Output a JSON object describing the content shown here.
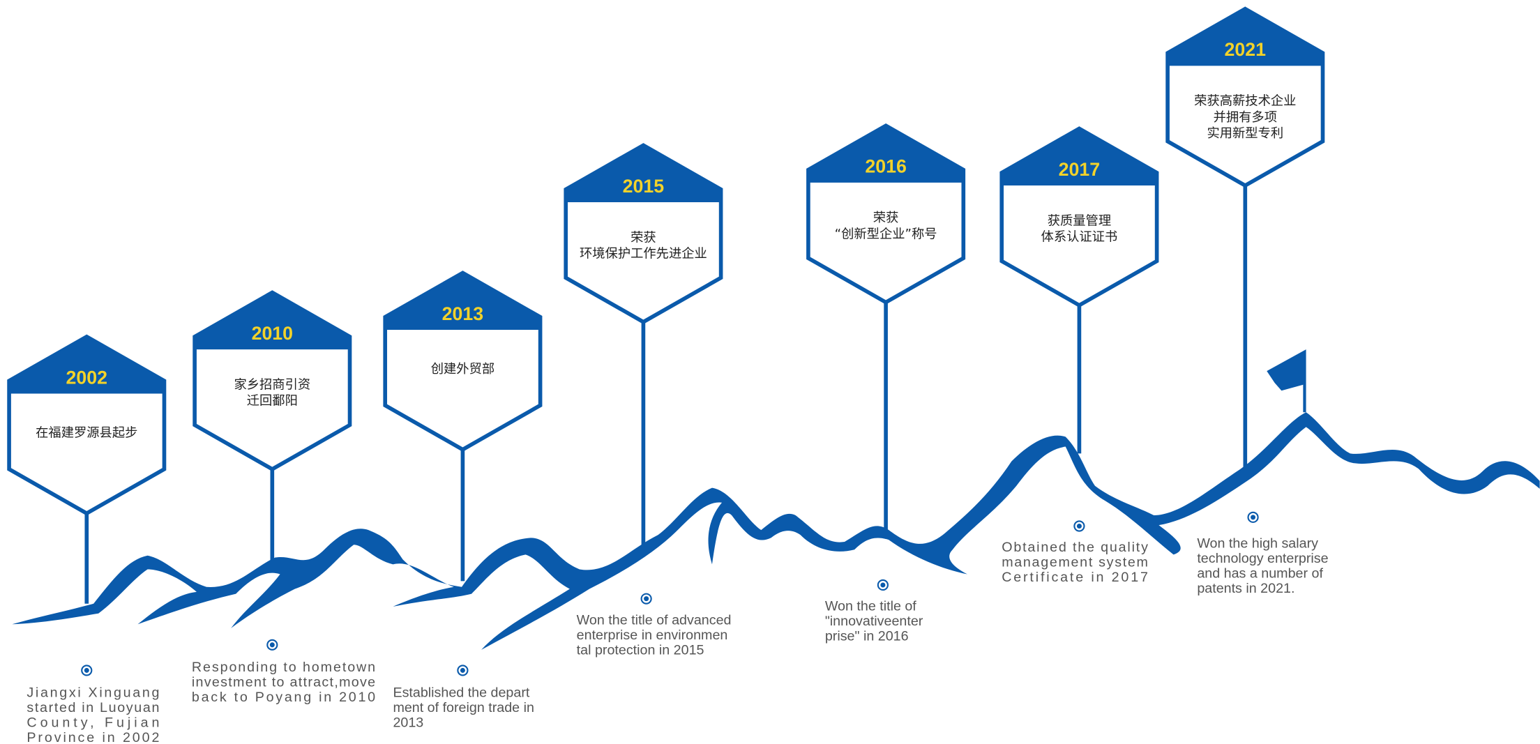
{
  "milestones": [
    {
      "year": "2002",
      "cn": [
        "在福建罗源县起步"
      ],
      "en": [
        "Jiangxi Xinguang",
        "started in Luoyuan",
        "County, Fujian",
        "Province in 2002"
      ]
    },
    {
      "year": "2010",
      "cn": [
        "家乡招商引资",
        "迁回鄱阳"
      ],
      "en": [
        "Responding to hometown",
        "investment to attract,move",
        "back to Poyang in 2010"
      ]
    },
    {
      "year": "2013",
      "cn": [
        "创建外贸部"
      ],
      "en": [
        "Established the depart",
        "ment of foreign trade in",
        "2013"
      ]
    },
    {
      "year": "2015",
      "cn": [
        "荣获",
        "环境保护工作先进企业"
      ],
      "en": [
        "Won the title of advanced",
        "enterprise in environmen",
        "tal protection in 2015"
      ]
    },
    {
      "year": "2016",
      "cn": [
        "荣获",
        "“创新型企业”称号"
      ],
      "en": [
        "Won the title of",
        "\"innovativeenter",
        "prise\" in 2016"
      ]
    },
    {
      "year": "2017",
      "cn": [
        "获质量管理",
        "体系认证证书"
      ],
      "en": [
        "Obtained the quality",
        "management system",
        "Certificate in 2017"
      ]
    },
    {
      "year": "2021",
      "cn": [
        "荣获高薪技术企业",
        "并拥有多项",
        "实用新型专利"
      ],
      "en": [
        "Won the high salary",
        "technology enterprise",
        "and has a number of",
        "patents in 2021."
      ]
    }
  ]
}
